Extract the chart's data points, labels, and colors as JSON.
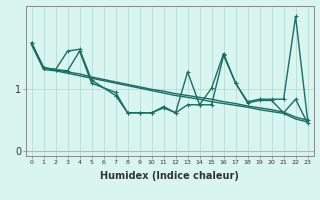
{
  "xlabel": "Humidex (Indice chaleur)",
  "background_color": "#d8f5f0",
  "vgrid_color": "#b8ddd8",
  "hgrid_color": "#e8a0a0",
  "line_color": "#1a6e64",
  "xlim": [
    -0.5,
    23.5
  ],
  "ylim": [
    -0.08,
    2.35
  ],
  "yticks": [
    0,
    1
  ],
  "xticks": [
    0,
    1,
    2,
    3,
    4,
    5,
    6,
    7,
    8,
    9,
    10,
    11,
    12,
    13,
    14,
    15,
    16,
    17,
    18,
    19,
    20,
    21,
    22,
    23
  ],
  "series": [
    {
      "x": [
        0,
        1,
        2,
        3,
        4,
        5,
        6,
        7,
        8,
        9,
        10,
        11,
        12,
        13,
        14,
        15,
        16,
        17,
        18,
        19,
        20,
        21,
        22,
        23
      ],
      "y": [
        1.75,
        1.35,
        1.32,
        1.28,
        1.25,
        1.2,
        1.16,
        1.12,
        1.08,
        1.04,
        1.0,
        0.97,
        0.93,
        0.9,
        0.87,
        0.84,
        0.8,
        0.77,
        0.73,
        0.7,
        0.67,
        0.63,
        0.55,
        0.5
      ],
      "marker": null,
      "lw": 1.0
    },
    {
      "x": [
        0,
        1,
        2,
        3,
        4,
        5,
        6,
        7,
        8,
        9,
        10,
        11,
        12,
        13,
        14,
        15,
        16,
        17,
        18,
        19,
        20,
        21,
        22,
        23
      ],
      "y": [
        1.72,
        1.32,
        1.3,
        1.26,
        1.22,
        1.18,
        1.14,
        1.1,
        1.06,
        1.02,
        0.98,
        0.94,
        0.9,
        0.87,
        0.84,
        0.8,
        0.77,
        0.74,
        0.71,
        0.67,
        0.64,
        0.61,
        0.52,
        0.47
      ],
      "marker": null,
      "lw": 1.0
    },
    {
      "x": [
        0,
        1,
        2,
        3,
        4,
        5,
        7,
        8,
        9,
        10,
        11,
        12,
        13,
        14,
        15,
        16,
        17,
        18,
        19,
        20,
        21,
        22,
        23
      ],
      "y": [
        1.75,
        1.35,
        1.32,
        1.62,
        1.65,
        1.15,
        0.9,
        0.62,
        0.62,
        0.62,
        0.72,
        0.62,
        1.28,
        0.75,
        1.02,
        1.58,
        1.1,
        0.8,
        0.84,
        0.84,
        0.84,
        2.18,
        0.5
      ],
      "marker": "+",
      "lw": 1.0
    },
    {
      "x": [
        0,
        1,
        2,
        3,
        4,
        5,
        7,
        8,
        9,
        10,
        11,
        12,
        13,
        14,
        15,
        16,
        17,
        18,
        19,
        20,
        21,
        22,
        23
      ],
      "y": [
        1.75,
        1.35,
        1.32,
        1.3,
        1.62,
        1.1,
        0.95,
        0.62,
        0.62,
        0.62,
        0.7,
        0.62,
        0.75,
        0.75,
        0.75,
        1.55,
        1.1,
        0.78,
        0.82,
        0.82,
        0.62,
        0.84,
        0.45
      ],
      "marker": "+",
      "lw": 1.0
    }
  ]
}
